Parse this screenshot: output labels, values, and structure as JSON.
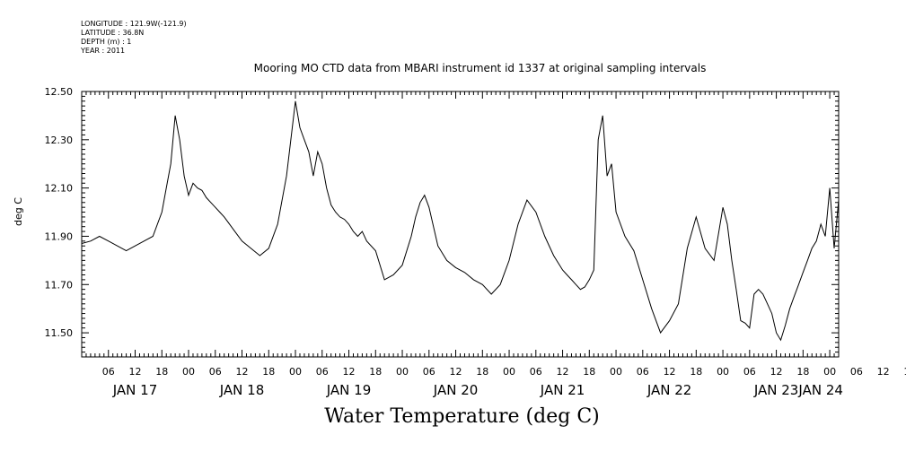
{
  "meta": {
    "longitude": "LONGITUDE : 121.9W(-121.9)",
    "latitude": "LATITUDE : 36.8N",
    "depth": "DEPTH (m) : 1",
    "year": "YEAR : 2011"
  },
  "chart_data": {
    "type": "line",
    "title": "Mooring MO CTD data from MBARI instrument id 1337 at original sampling intervals",
    "xlabel": "Water Temperature (deg C)",
    "ylabel": "deg C",
    "ylim": [
      11.4,
      12.5
    ],
    "y_ticks": [
      "11.50",
      "11.70",
      "11.90",
      "12.10",
      "12.30",
      "12.50"
    ],
    "x_range_hours": [
      0,
      170
    ],
    "x_hour_ticks": [
      "06",
      "12",
      "18",
      "00",
      "06",
      "12",
      "18",
      "00",
      "06",
      "12",
      "18",
      "00",
      "06",
      "12",
      "18",
      "00",
      "06",
      "12",
      "18",
      "00",
      "06",
      "12",
      "18",
      "00",
      "06",
      "12",
      "18",
      "00",
      "06",
      "12",
      "18",
      "00",
      "06",
      "12",
      "18",
      "00"
    ],
    "x_day_labels": [
      "JAN 17",
      "JAN 18",
      "JAN 19",
      "JAN 20",
      "JAN 21",
      "JAN 22",
      "JAN 23",
      "JAN 24"
    ],
    "grid": false,
    "series": [
      {
        "x": [
          0,
          2,
          4,
          6,
          8,
          10,
          12,
          14,
          16,
          18,
          19,
          20,
          21,
          22,
          23,
          24,
          25,
          26,
          27,
          28,
          29,
          30,
          31,
          32,
          34,
          36,
          38,
          40,
          42,
          44,
          46,
          48,
          49,
          50,
          51,
          52,
          53,
          54,
          55,
          56,
          57,
          58,
          59,
          60,
          61,
          62,
          63,
          64,
          66,
          68,
          70,
          72,
          74,
          75,
          76,
          77,
          78,
          80,
          82,
          84,
          86,
          88,
          90,
          92,
          94,
          96,
          98,
          100,
          102,
          104,
          106,
          108,
          109,
          110,
          111,
          112,
          113,
          114,
          115,
          116,
          117,
          118,
          119,
          120,
          122,
          124,
          126,
          128,
          130,
          132,
          134,
          136,
          138,
          140,
          142,
          144,
          145,
          146,
          147,
          148,
          149,
          150,
          151,
          152,
          153,
          154,
          155,
          156,
          157,
          158,
          159,
          160,
          161,
          162,
          163,
          164,
          165,
          166,
          167,
          168,
          169,
          170
        ],
        "y": [
          11.87,
          11.88,
          11.9,
          11.88,
          11.86,
          11.84,
          11.86,
          11.88,
          11.9,
          12.0,
          12.1,
          12.2,
          12.4,
          12.3,
          12.15,
          12.07,
          12.12,
          12.1,
          12.09,
          12.06,
          12.04,
          12.02,
          12.0,
          11.98,
          11.93,
          11.88,
          11.85,
          11.82,
          11.85,
          11.95,
          12.15,
          12.46,
          12.35,
          12.3,
          12.25,
          12.15,
          12.25,
          12.2,
          12.1,
          12.03,
          12.0,
          11.98,
          11.97,
          11.95,
          11.92,
          11.9,
          11.92,
          11.88,
          11.84,
          11.72,
          11.74,
          11.78,
          11.9,
          11.98,
          12.04,
          12.07,
          12.02,
          11.86,
          11.8,
          11.77,
          11.75,
          11.72,
          11.7,
          11.66,
          11.7,
          11.8,
          11.95,
          12.05,
          12.0,
          11.9,
          11.82,
          11.76,
          11.74,
          11.72,
          11.7,
          11.68,
          11.69,
          11.72,
          11.76,
          12.3,
          12.4,
          12.15,
          12.2,
          12.0,
          11.9,
          11.84,
          11.72,
          11.6,
          11.5,
          11.55,
          11.62,
          11.85,
          11.98,
          11.85,
          11.8,
          12.02,
          11.95,
          11.8,
          11.68,
          11.55,
          11.54,
          11.52,
          11.66,
          11.68,
          11.66,
          11.62,
          11.58,
          11.5,
          11.47,
          11.53,
          11.6,
          11.65,
          11.7,
          11.75,
          11.8,
          11.85,
          11.88,
          11.95,
          11.9,
          12.1,
          11.85,
          12.05
        ]
      }
    ]
  }
}
